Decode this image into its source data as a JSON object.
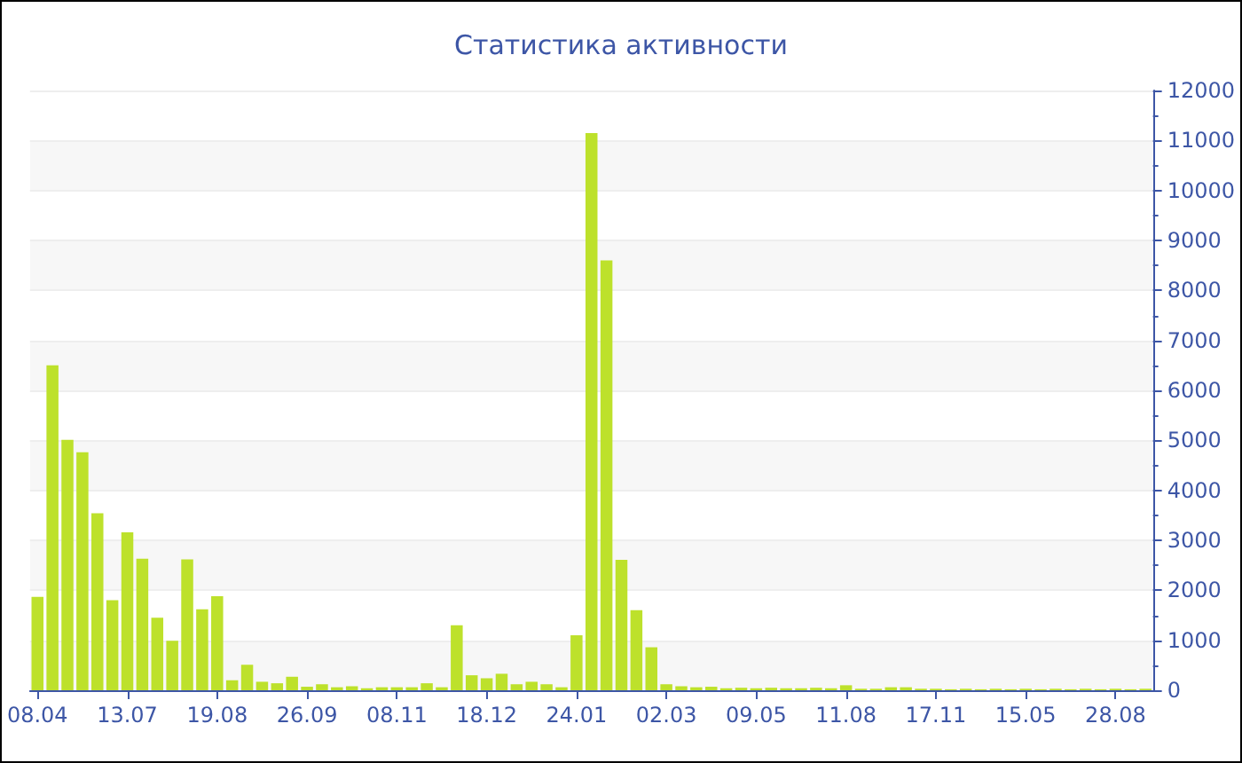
{
  "chart_data": {
    "type": "bar",
    "title": "Статистика активности",
    "categories": [
      "08.04",
      null,
      null,
      null,
      null,
      null,
      "13.07",
      null,
      null,
      null,
      null,
      null,
      "19.08",
      null,
      null,
      null,
      null,
      null,
      "26.09",
      null,
      null,
      null,
      null,
      null,
      "08.11",
      null,
      null,
      null,
      null,
      null,
      "18.12",
      null,
      null,
      null,
      null,
      null,
      "24.01",
      null,
      null,
      null,
      null,
      null,
      "02.03",
      null,
      null,
      null,
      null,
      null,
      "09.05",
      null,
      null,
      null,
      null,
      null,
      "11.08",
      null,
      null,
      null,
      null,
      null,
      "17.11",
      null,
      null,
      null,
      null,
      null,
      "15.05",
      null,
      null,
      null,
      null,
      null,
      "28.08",
      null,
      null
    ],
    "values": [
      1870,
      6500,
      5010,
      4760,
      3540,
      1800,
      3160,
      2630,
      1450,
      990,
      2620,
      1620,
      1880,
      200,
      510,
      170,
      140,
      270,
      70,
      120,
      60,
      80,
      40,
      60,
      60,
      60,
      140,
      60,
      1300,
      300,
      240,
      330,
      120,
      170,
      120,
      60,
      1100,
      11150,
      8600,
      2610,
      1600,
      860,
      120,
      80,
      60,
      70,
      40,
      50,
      40,
      50,
      40,
      40,
      50,
      40,
      100,
      30,
      30,
      60,
      60,
      30,
      30,
      20,
      30,
      20,
      30,
      20,
      30,
      20,
      30,
      20,
      30,
      20,
      30,
      20,
      30
    ],
    "color": "#bde12b",
    "ylim": [
      0,
      12000
    ],
    "yticks": [
      0,
      1000,
      2000,
      3000,
      4000,
      5000,
      6000,
      7000,
      8000,
      9000,
      10000,
      11000,
      12000
    ],
    "grid": "y"
  }
}
